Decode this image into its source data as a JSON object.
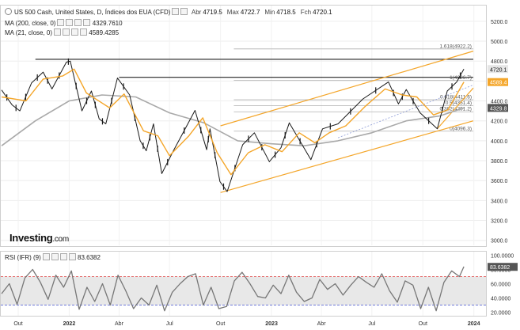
{
  "header": {
    "title": "US 500 Cash, United States, D, Índices dos EUA (CFD)",
    "open_label": "Abr",
    "open": "4719.5",
    "high_label": "Max",
    "high": "4722.7",
    "low_label": "Min",
    "low": "4718.5",
    "close_label": "Fch",
    "close": "4720.1",
    "ma200_label": "MA (200, close, 0)",
    "ma200_value": "4329.7610",
    "ma21_label": "MA (21, close, 0)",
    "ma21_value": "4589.4285"
  },
  "rsi_header": {
    "label": "RSI (IFR) (9)",
    "value": "83.6382"
  },
  "logo": {
    "brand": "Investing",
    "suffix": ".com"
  },
  "colors": {
    "price": "#1a1a1a",
    "ma21": "#f4a62a",
    "ma200": "#a9a9a9",
    "channel": "#f4a62a",
    "fib": "#b0b0b0",
    "rsi": "#777777",
    "rsi_upper": "#e04040",
    "rsi_lower": "#4050d0"
  },
  "chart_data": [
    {
      "type": "line",
      "name": "price",
      "ylim": [
        2950,
        5350
      ],
      "x_range": [
        "2021-09-01",
        "2024-01-20"
      ],
      "y_ticks": [
        "5200.0",
        "5000.0",
        "4800.0",
        "4600.0",
        "4400.0",
        "4200.0",
        "4000.0",
        "3800.0",
        "3600.0",
        "3400.0",
        "3200.0",
        "3000.0"
      ],
      "x_ticks": [
        {
          "label": "Out",
          "date": "2021-10-01"
        },
        {
          "label": "2022",
          "date": "2022-01-01"
        },
        {
          "label": "Abr",
          "date": "2022-04-01"
        },
        {
          "label": "Jul",
          "date": "2022-07-01"
        },
        {
          "label": "Out",
          "date": "2022-10-01"
        },
        {
          "label": "2023",
          "date": "2023-01-01"
        },
        {
          "label": "Abr",
          "date": "2023-04-01"
        },
        {
          "label": "Jul",
          "date": "2023-07-01"
        },
        {
          "label": "Out",
          "date": "2023-10-01"
        },
        {
          "label": "2024",
          "date": "2024-01-01"
        }
      ],
      "series": [
        {
          "key": "close",
          "points": [
            [
              "2021-09-01",
              4510
            ],
            [
              "2021-09-20",
              4360
            ],
            [
              "2021-10-04",
              4300
            ],
            [
              "2021-10-25",
              4580
            ],
            [
              "2021-11-15",
              4690
            ],
            [
              "2021-12-01",
              4520
            ],
            [
              "2021-12-27",
              4790
            ],
            [
              "2022-01-03",
              4800
            ],
            [
              "2022-01-24",
              4300
            ],
            [
              "2022-02-10",
              4500
            ],
            [
              "2022-02-24",
              4220
            ],
            [
              "2022-03-08",
              4170
            ],
            [
              "2022-03-29",
              4630
            ],
            [
              "2022-04-20",
              4460
            ],
            [
              "2022-05-09",
              4000
            ],
            [
              "2022-05-20",
              3900
            ],
            [
              "2022-06-02",
              4170
            ],
            [
              "2022-06-17",
              3670
            ],
            [
              "2022-07-08",
              3900
            ],
            [
              "2022-08-16",
              4305
            ],
            [
              "2022-09-06",
              3910
            ],
            [
              "2022-09-12",
              4120
            ],
            [
              "2022-09-30",
              3590
            ],
            [
              "2022-10-13",
              3490
            ],
            [
              "2022-11-10",
              3960
            ],
            [
              "2022-12-01",
              4080
            ],
            [
              "2022-12-28",
              3790
            ],
            [
              "2023-01-18",
              3930
            ],
            [
              "2023-02-02",
              4180
            ],
            [
              "2023-03-13",
              3810
            ],
            [
              "2023-04-03",
              4120
            ],
            [
              "2023-05-01",
              4170
            ],
            [
              "2023-06-15",
              4420
            ],
            [
              "2023-07-31",
              4590
            ],
            [
              "2023-08-18",
              4370
            ],
            [
              "2023-09-01",
              4515
            ],
            [
              "2023-09-26",
              4280
            ],
            [
              "2023-10-27",
              4120
            ],
            [
              "2023-11-14",
              4500
            ],
            [
              "2023-12-01",
              4590
            ],
            [
              "2023-12-14",
              4720
            ]
          ]
        },
        {
          "key": "ma21",
          "points": [
            [
              "2021-09-01",
              4440
            ],
            [
              "2021-10-15",
              4400
            ],
            [
              "2021-11-15",
              4620
            ],
            [
              "2021-12-20",
              4650
            ],
            [
              "2022-01-10",
              4720
            ],
            [
              "2022-02-01",
              4480
            ],
            [
              "2022-03-15",
              4330
            ],
            [
              "2022-04-10",
              4470
            ],
            [
              "2022-05-15",
              4100
            ],
            [
              "2022-06-10",
              4050
            ],
            [
              "2022-07-01",
              3850
            ],
            [
              "2022-08-05",
              4050
            ],
            [
              "2022-08-30",
              4230
            ],
            [
              "2022-09-25",
              3880
            ],
            [
              "2022-10-20",
              3660
            ],
            [
              "2022-11-20",
              3880
            ],
            [
              "2022-12-20",
              3960
            ],
            [
              "2023-01-20",
              3890
            ],
            [
              "2023-02-20",
              4080
            ],
            [
              "2023-03-20",
              3980
            ],
            [
              "2023-04-15",
              4080
            ],
            [
              "2023-05-15",
              4150
            ],
            [
              "2023-06-20",
              4350
            ],
            [
              "2023-07-25",
              4520
            ],
            [
              "2023-08-25",
              4460
            ],
            [
              "2023-09-20",
              4440
            ],
            [
              "2023-10-20",
              4260
            ],
            [
              "2023-11-15",
              4310
            ],
            [
              "2023-12-14",
              4590
            ]
          ]
        },
        {
          "key": "ma200",
          "points": [
            [
              "2021-09-01",
              3950
            ],
            [
              "2021-11-01",
              4200
            ],
            [
              "2022-01-01",
              4400
            ],
            [
              "2022-03-01",
              4460
            ],
            [
              "2022-05-01",
              4440
            ],
            [
              "2022-07-01",
              4280
            ],
            [
              "2022-09-01",
              4180
            ],
            [
              "2022-11-01",
              4000
            ],
            [
              "2023-01-01",
              3970
            ],
            [
              "2023-03-01",
              3950
            ],
            [
              "2023-05-01",
              4000
            ],
            [
              "2023-07-01",
              4080
            ],
            [
              "2023-09-01",
              4200
            ],
            [
              "2023-11-01",
              4250
            ],
            [
              "2023-12-14",
              4330
            ]
          ]
        }
      ],
      "channel": [
        {
          "from": [
            "2022-10-01",
            3480
          ],
          "to": [
            "2023-12-31",
            4200
          ]
        },
        {
          "from": [
            "2022-10-01",
            4150
          ],
          "to": [
            "2023-12-31",
            4900
          ]
        },
        {
          "from": [
            "2023-10-27",
            4120
          ],
          "to": [
            "2023-12-31",
            4530
          ]
        }
      ],
      "horizontal_lines": [
        {
          "y": 4818,
          "from": "2021-11-01",
          "to": "2023-12-31"
        },
        {
          "y": 4637,
          "from": "2022-04-01",
          "to": "2023-12-31"
        }
      ],
      "fib_levels": [
        {
          "label": "1.618(4922.2)",
          "y": 4922.2
        },
        {
          "label": "1(4606.7)",
          "y": 4606.7
        },
        {
          "label": "0.618(4411.6)",
          "y": 4411.6
        },
        {
          "label": "0.5(4351.4)",
          "y": 4351.4
        },
        {
          "label": "0.382(4291.2)",
          "y": 4291.2
        },
        {
          "label": "0(4096.3)",
          "y": 4096.3
        }
      ],
      "right_tags": [
        {
          "label": "4720.1",
          "y": 4720.1,
          "bg": "#e6e6e6",
          "fg": "#111111"
        },
        {
          "label": "4589.4",
          "y": 4589.4,
          "bg": "#f4a62a",
          "fg": "#ffffff"
        },
        {
          "label": "4329.8",
          "y": 4329.8,
          "bg": "#555555",
          "fg": "#ffffff"
        }
      ]
    },
    {
      "type": "line",
      "name": "rsi",
      "ylim": [
        15,
        105
      ],
      "y_ticks": [
        "100.0000",
        "80.0000",
        "60.0000",
        "40.0000",
        "20.0000"
      ],
      "upper": 70,
      "lower": 30,
      "value_tag": "83.6382",
      "points": [
        [
          "2021-09-01",
          46
        ],
        [
          "2021-09-15",
          60
        ],
        [
          "2021-09-29",
          31
        ],
        [
          "2021-10-13",
          68
        ],
        [
          "2021-10-27",
          80
        ],
        [
          "2021-11-10",
          62
        ],
        [
          "2021-11-24",
          38
        ],
        [
          "2021-12-08",
          72
        ],
        [
          "2021-12-22",
          55
        ],
        [
          "2022-01-05",
          78
        ],
        [
          "2022-01-19",
          24
        ],
        [
          "2022-02-02",
          55
        ],
        [
          "2022-02-16",
          35
        ],
        [
          "2022-03-02",
          60
        ],
        [
          "2022-03-16",
          30
        ],
        [
          "2022-03-30",
          72
        ],
        [
          "2022-04-13",
          50
        ],
        [
          "2022-04-27",
          25
        ],
        [
          "2022-05-11",
          40
        ],
        [
          "2022-05-25",
          30
        ],
        [
          "2022-06-08",
          58
        ],
        [
          "2022-06-22",
          22
        ],
        [
          "2022-07-06",
          48
        ],
        [
          "2022-07-20",
          60
        ],
        [
          "2022-08-03",
          70
        ],
        [
          "2022-08-17",
          74
        ],
        [
          "2022-08-31",
          30
        ],
        [
          "2022-09-14",
          55
        ],
        [
          "2022-09-28",
          25
        ],
        [
          "2022-10-12",
          28
        ],
        [
          "2022-10-26",
          64
        ],
        [
          "2022-11-09",
          76
        ],
        [
          "2022-11-23",
          60
        ],
        [
          "2022-12-07",
          42
        ],
        [
          "2022-12-21",
          40
        ],
        [
          "2023-01-04",
          58
        ],
        [
          "2023-01-18",
          46
        ],
        [
          "2023-02-01",
          72
        ],
        [
          "2023-02-15",
          48
        ],
        [
          "2023-03-01",
          35
        ],
        [
          "2023-03-15",
          40
        ],
        [
          "2023-03-29",
          66
        ],
        [
          "2023-04-12",
          52
        ],
        [
          "2023-04-26",
          60
        ],
        [
          "2023-05-10",
          44
        ],
        [
          "2023-05-24",
          58
        ],
        [
          "2023-06-07",
          70
        ],
        [
          "2023-06-21",
          62
        ],
        [
          "2023-07-05",
          55
        ],
        [
          "2023-07-19",
          74
        ],
        [
          "2023-08-02",
          50
        ],
        [
          "2023-08-16",
          34
        ],
        [
          "2023-08-30",
          64
        ],
        [
          "2023-09-13",
          58
        ],
        [
          "2023-09-27",
          25
        ],
        [
          "2023-10-11",
          55
        ],
        [
          "2023-10-25",
          22
        ],
        [
          "2023-11-08",
          62
        ],
        [
          "2023-11-22",
          78
        ],
        [
          "2023-12-06",
          70
        ],
        [
          "2023-12-14",
          84
        ]
      ]
    }
  ]
}
